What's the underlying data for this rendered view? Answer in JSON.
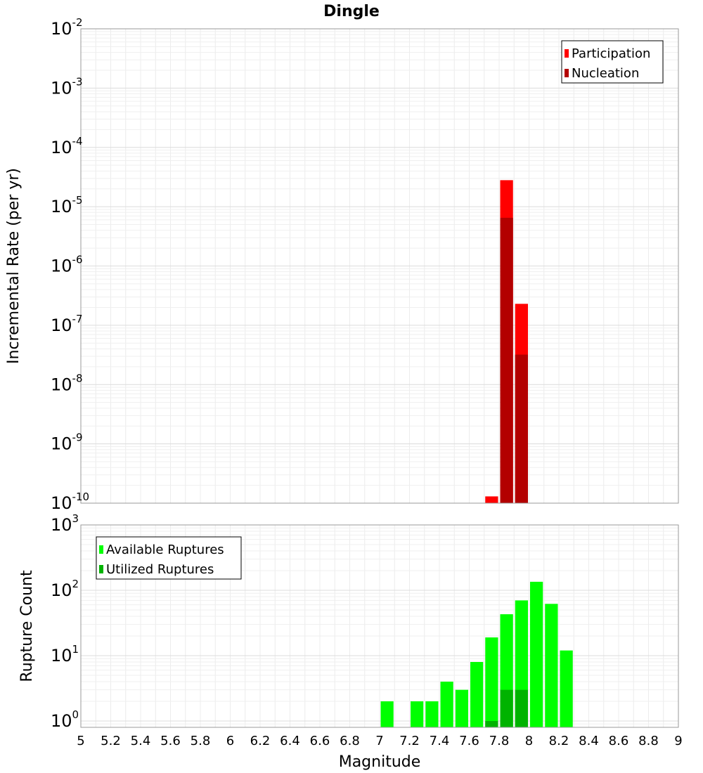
{
  "title": "Dingle",
  "chart_data": [
    {
      "type": "bar",
      "ylabel": "Incremental Rate (per yr)",
      "xlabel": "",
      "yscale": "log",
      "ylim": [
        1e-10,
        0.01
      ],
      "y_tick_exponents": [
        -2,
        -3,
        -4,
        -5,
        -6,
        -7,
        -8,
        -9,
        -10
      ],
      "xlim": [
        5,
        9
      ],
      "bin_width": 0.1,
      "grid": true,
      "legend_position": "top-right",
      "series": [
        {
          "name": "Participation",
          "color": "#ff0000",
          "points": [
            {
              "x": 7.75,
              "y": 1.3e-10
            },
            {
              "x": 7.85,
              "y": 2.8e-05
            },
            {
              "x": 7.95,
              "y": 2.3e-07
            }
          ]
        },
        {
          "name": "Nucleation",
          "color": "#b30000",
          "points": [
            {
              "x": 7.85,
              "y": 6.5e-06
            },
            {
              "x": 7.95,
              "y": 3.2e-08
            }
          ]
        }
      ]
    },
    {
      "type": "bar",
      "ylabel": "Rupture Count",
      "xlabel": "Magnitude",
      "yscale": "log",
      "ylim": [
        0.8,
        1000
      ],
      "y_tick_exponents": [
        3,
        2,
        1,
        0
      ],
      "xlim": [
        5,
        9
      ],
      "bin_width": 0.1,
      "x_ticks": [
        "5",
        "5.2",
        "5.4",
        "5.6",
        "5.8",
        "6",
        "6.2",
        "6.4",
        "6.6",
        "6.8",
        "7",
        "7.2",
        "7.4",
        "7.6",
        "7.8",
        "8",
        "8.2",
        "8.4",
        "8.6",
        "8.8",
        "9"
      ],
      "grid": true,
      "legend_position": "top-left",
      "series": [
        {
          "name": "Available Ruptures",
          "color": "#00ff00",
          "points": [
            {
              "x": 7.05,
              "y": 2
            },
            {
              "x": 7.25,
              "y": 2
            },
            {
              "x": 7.35,
              "y": 2
            },
            {
              "x": 7.45,
              "y": 4
            },
            {
              "x": 7.55,
              "y": 3
            },
            {
              "x": 7.65,
              "y": 8
            },
            {
              "x": 7.75,
              "y": 19
            },
            {
              "x": 7.85,
              "y": 43
            },
            {
              "x": 7.95,
              "y": 70
            },
            {
              "x": 8.05,
              "y": 135
            },
            {
              "x": 8.15,
              "y": 62
            },
            {
              "x": 8.25,
              "y": 12
            }
          ]
        },
        {
          "name": "Utilized Ruptures",
          "color": "#00b300",
          "points": [
            {
              "x": 7.75,
              "y": 1
            },
            {
              "x": 7.85,
              "y": 3
            },
            {
              "x": 7.95,
              "y": 3
            }
          ]
        }
      ]
    }
  ]
}
